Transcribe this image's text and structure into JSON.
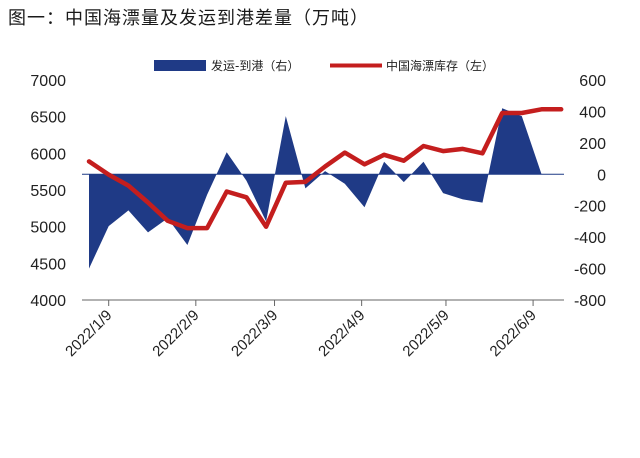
{
  "chart_data": {
    "type": "line+area",
    "title": "图一：中国海漂量及发运到港差量（万吨）",
    "x_tick_labels": [
      "2022/1/9",
      "2022/2/9",
      "2022/3/9",
      "2022/4/9",
      "2022/5/9",
      "2022/6/9"
    ],
    "left_axis": {
      "ylim": [
        4000,
        7000
      ],
      "ticks": [
        4000,
        4500,
        5000,
        5500,
        6000,
        6500,
        7000
      ]
    },
    "right_axis": {
      "ylim": [
        -800,
        600
      ],
      "ticks": [
        -800,
        -600,
        -400,
        -200,
        0,
        200,
        400,
        600
      ]
    },
    "x": [
      "2022/1/2",
      "2022/1/9",
      "2022/1/16",
      "2022/1/23",
      "2022/1/30",
      "2022/2/6",
      "2022/2/13",
      "2022/2/20",
      "2022/2/27",
      "2022/3/6",
      "2022/3/13",
      "2022/3/20",
      "2022/3/27",
      "2022/4/3",
      "2022/4/10",
      "2022/4/17",
      "2022/4/24",
      "2022/5/1",
      "2022/5/8",
      "2022/5/15",
      "2022/5/22",
      "2022/5/29",
      "2022/6/5",
      "2022/6/12",
      "2022/6/19"
    ],
    "series": [
      {
        "name": "发运-到港（右）",
        "type": "area",
        "axis": "right",
        "color": "#1f3a86",
        "values": [
          -600,
          -330,
          -230,
          -370,
          -280,
          -450,
          -130,
          140,
          -40,
          -300,
          370,
          -90,
          20,
          -60,
          -210,
          80,
          -50,
          80,
          -120,
          -160,
          -180,
          420,
          370,
          1,
          0
        ]
      },
      {
        "name": "中国海漂库存（左）",
        "type": "line",
        "axis": "left",
        "color": "#c41e1e",
        "values": [
          5890,
          5710,
          5560,
          5330,
          5080,
          4980,
          4980,
          5480,
          5400,
          5000,
          5600,
          5610,
          5820,
          6010,
          5850,
          5980,
          5900,
          6100,
          6030,
          6060,
          6000,
          6550,
          6550,
          6600,
          6600
        ]
      }
    ],
    "legend": {
      "position": "top",
      "entries": [
        "发运-到港（右）",
        "中国海漂库存（左）"
      ]
    }
  }
}
